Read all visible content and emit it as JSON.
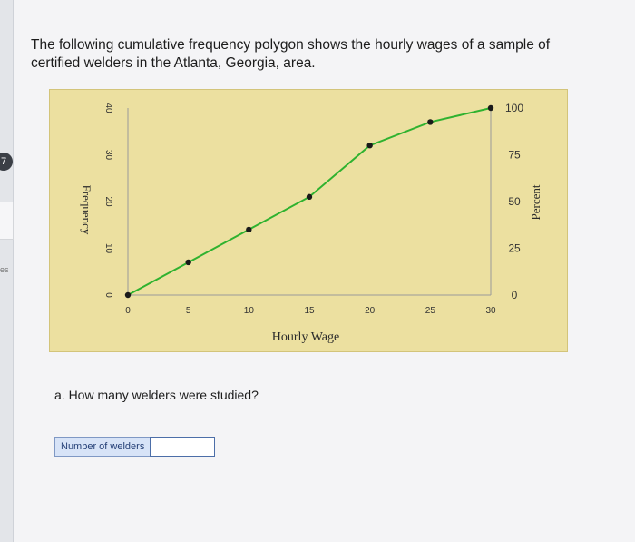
{
  "side": {
    "badge": "7",
    "label": "es"
  },
  "question": {
    "text": "The following cumulative frequency polygon shows the hourly wages of a sample of certified welders in the Atlanta, Georgia, area."
  },
  "part_a": {
    "text": "a. How many welders were studied?",
    "answer_label": "Number of welders",
    "answer_value": ""
  },
  "chart_data": {
    "type": "line",
    "xlabel": "Hourly Wage",
    "ylabel": "Frequency",
    "y2label": "Percent",
    "x_ticks": [
      0,
      5,
      10,
      15,
      20,
      25,
      30
    ],
    "y_ticks": [
      0,
      10,
      20,
      30,
      40
    ],
    "y2_ticks": [
      0,
      25,
      50,
      75,
      100
    ],
    "xlim": [
      0,
      30
    ],
    "ylim": [
      0,
      40
    ],
    "y2lim": [
      0,
      100
    ],
    "series": [
      {
        "x": [
          0,
          5,
          10,
          15,
          20,
          25,
          30
        ],
        "y": [
          0,
          7,
          14,
          21,
          32,
          37,
          40
        ]
      }
    ],
    "line_color": "#2fb22f",
    "point_color": "#1a1a1a",
    "background": "#ece0a0"
  }
}
